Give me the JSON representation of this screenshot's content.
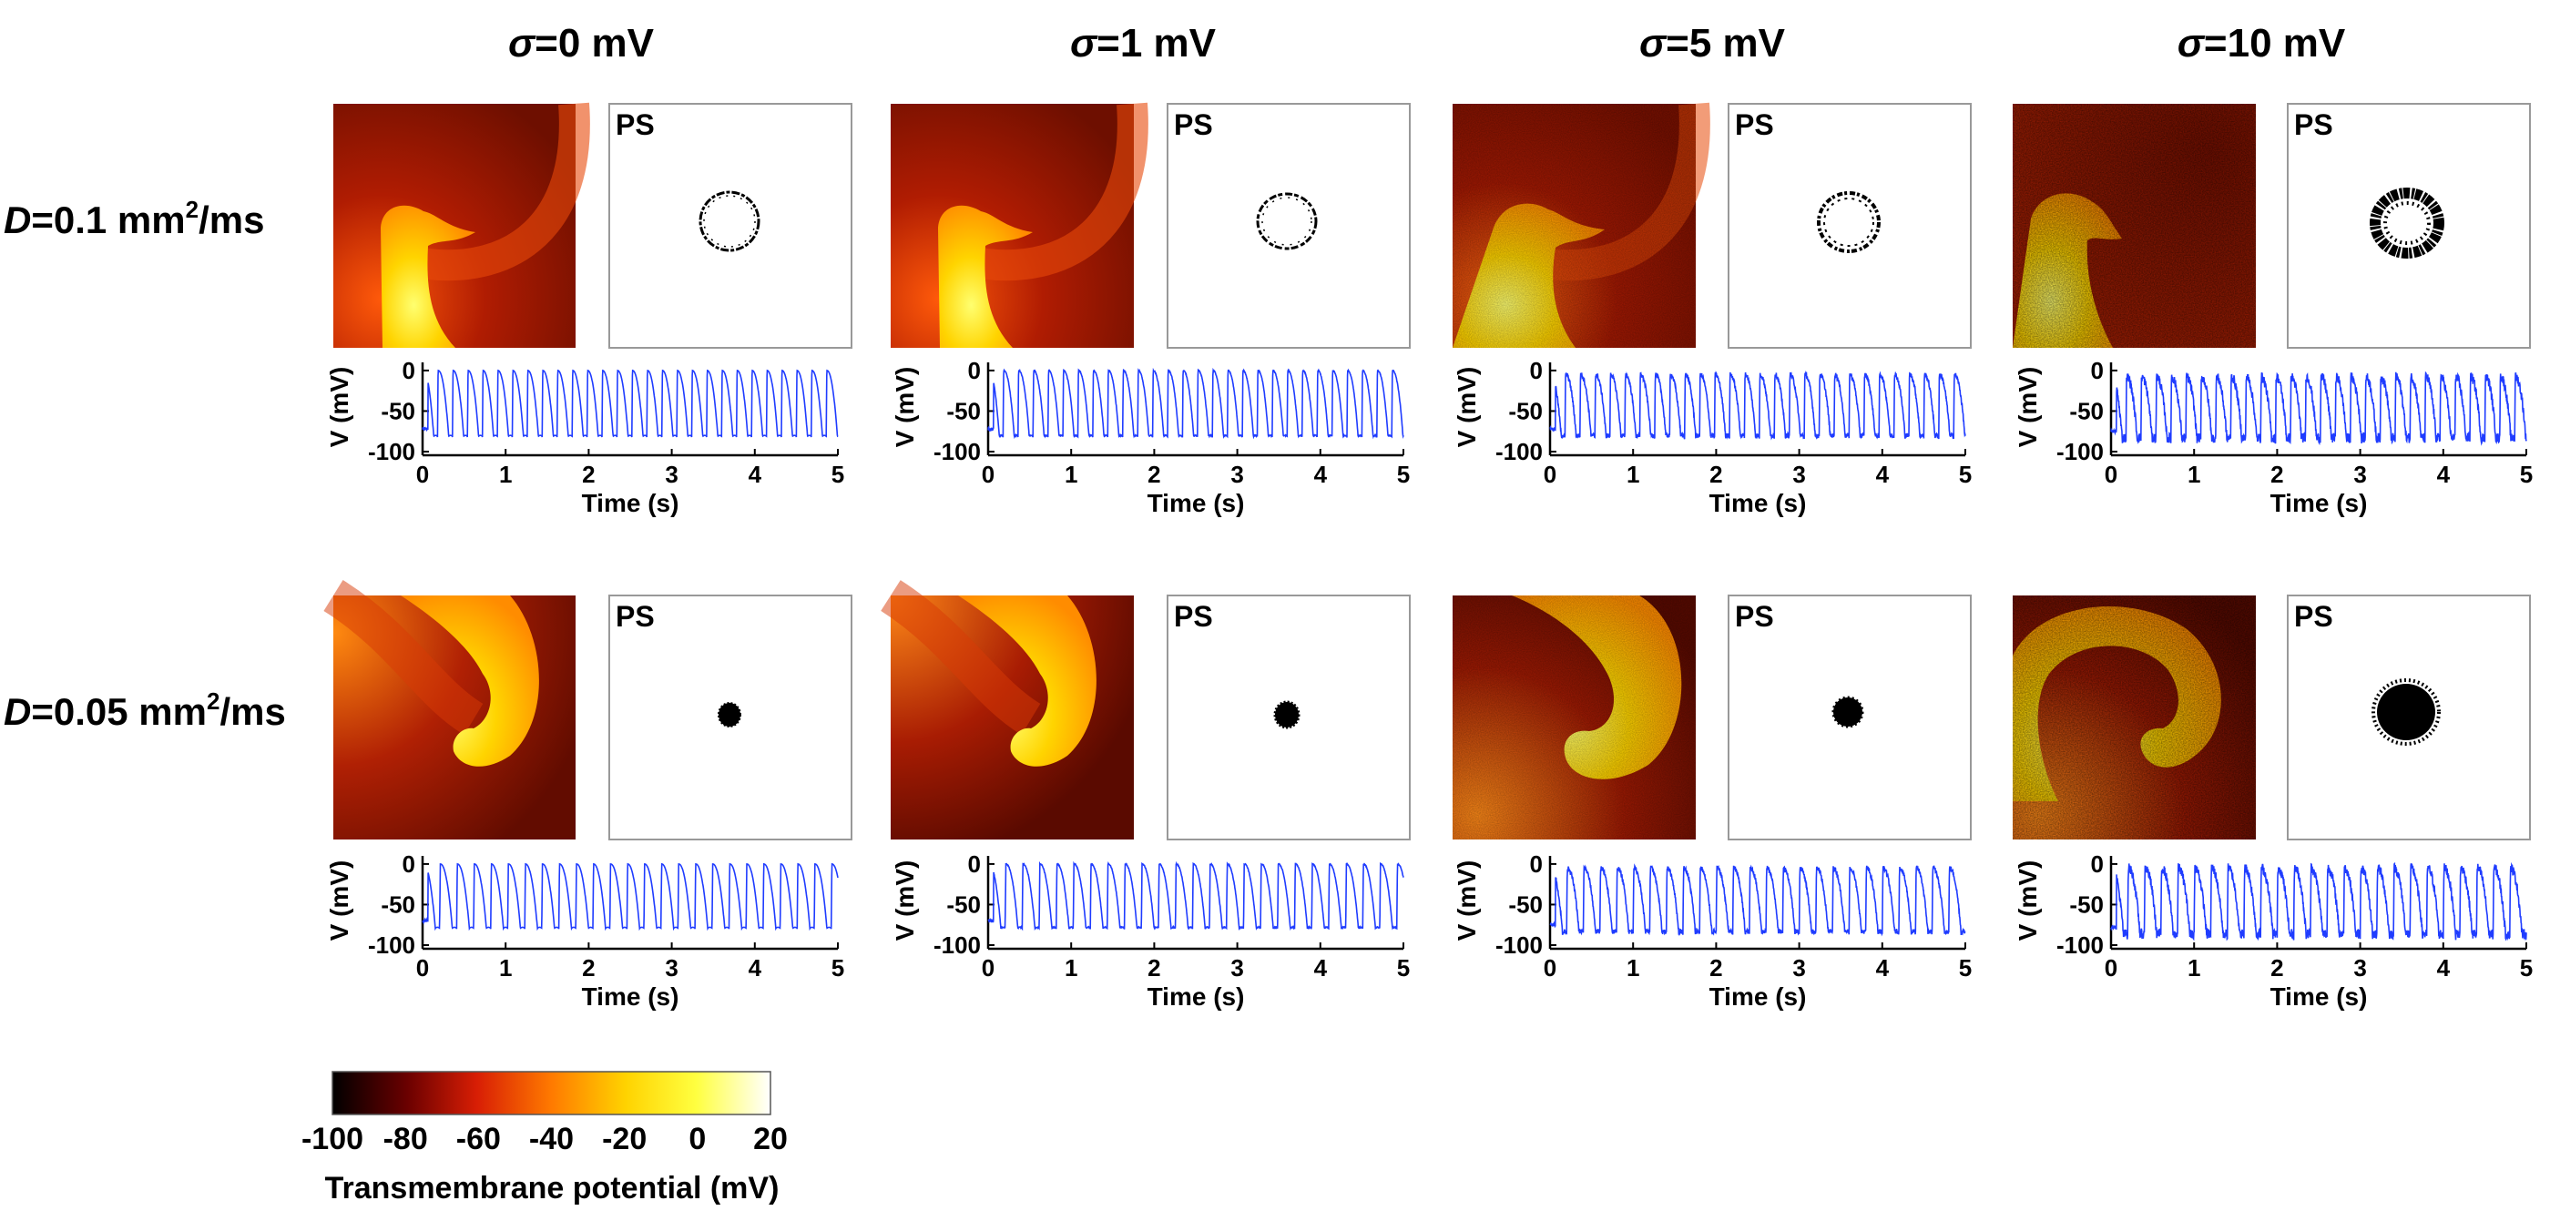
{
  "column_headers": [
    {
      "symbol": "σ",
      "rest": "=0 mV"
    },
    {
      "symbol": "σ",
      "rest": "=1 mV"
    },
    {
      "symbol": "σ",
      "rest": "=5 mV"
    },
    {
      "symbol": "σ",
      "rest": "=10 mV"
    }
  ],
  "row_labels": [
    {
      "symbol": "D",
      "rest": "=0.1 mm",
      "sup": "2",
      "tail": "/ms"
    },
    {
      "symbol": "D",
      "rest": "=0.05 mm",
      "sup": "2",
      "tail": "/ms"
    }
  ],
  "ps_label": "PS",
  "trace_axes": {
    "xlabel": "Time (s)",
    "ylabel": "V (mV)",
    "x_ticks": [
      "0",
      "1",
      "2",
      "3",
      "4",
      "5"
    ],
    "y_ticks": [
      "0",
      "-50",
      "-100"
    ],
    "x_range": [
      0,
      5
    ],
    "y_range": [
      -100,
      10
    ],
    "trace_color": "#1f3cff"
  },
  "colorbar": {
    "ticks": [
      "-100",
      "-80",
      "-60",
      "-40",
      "-20",
      "0",
      "20"
    ],
    "range": [
      -100,
      20
    ],
    "label": "Transmembrane potential (mV)",
    "colormap": [
      "#000000",
      "#6a0000",
      "#d81e05",
      "#ff7a00",
      "#ffd300",
      "#ffff40",
      "#ffffff"
    ]
  },
  "colors": {
    "frame": "#999999",
    "axis": "#000000"
  },
  "chart_data": {
    "type": "line",
    "grid": false,
    "panels": [
      {
        "row": "D=0.1 mm²/ms",
        "column": "σ=0 mV",
        "noise_mV": 0,
        "period_s": 0.18,
        "peak_mV": 0,
        "trough_mV": -82
      },
      {
        "row": "D=0.1 mm²/ms",
        "column": "σ=1 mV",
        "noise_mV": 1,
        "period_s": 0.18,
        "peak_mV": 0,
        "trough_mV": -82
      },
      {
        "row": "D=0.1 mm²/ms",
        "column": "σ=5 mV",
        "noise_mV": 5,
        "period_s": 0.18,
        "peak_mV": -5,
        "trough_mV": -82
      },
      {
        "row": "D=0.1 mm²/ms",
        "column": "σ=10 mV",
        "noise_mV": 10,
        "period_s": 0.18,
        "peak_mV": -8,
        "trough_mV": -85
      },
      {
        "row": "D=0.05 mm²/ms",
        "column": "σ=0 mV",
        "noise_mV": 0,
        "period_s": 0.205,
        "peak_mV": 0,
        "trough_mV": -80
      },
      {
        "row": "D=0.05 mm²/ms",
        "column": "σ=1 mV",
        "noise_mV": 1,
        "period_s": 0.205,
        "peak_mV": 0,
        "trough_mV": -80
      },
      {
        "row": "D=0.05 mm²/ms",
        "column": "σ=5 mV",
        "noise_mV": 5,
        "period_s": 0.2,
        "peak_mV": -5,
        "trough_mV": -85
      },
      {
        "row": "D=0.05 mm²/ms",
        "column": "σ=10 mV",
        "noise_mV": 10,
        "period_s": 0.2,
        "peak_mV": -5,
        "trough_mV": -88
      }
    ]
  }
}
